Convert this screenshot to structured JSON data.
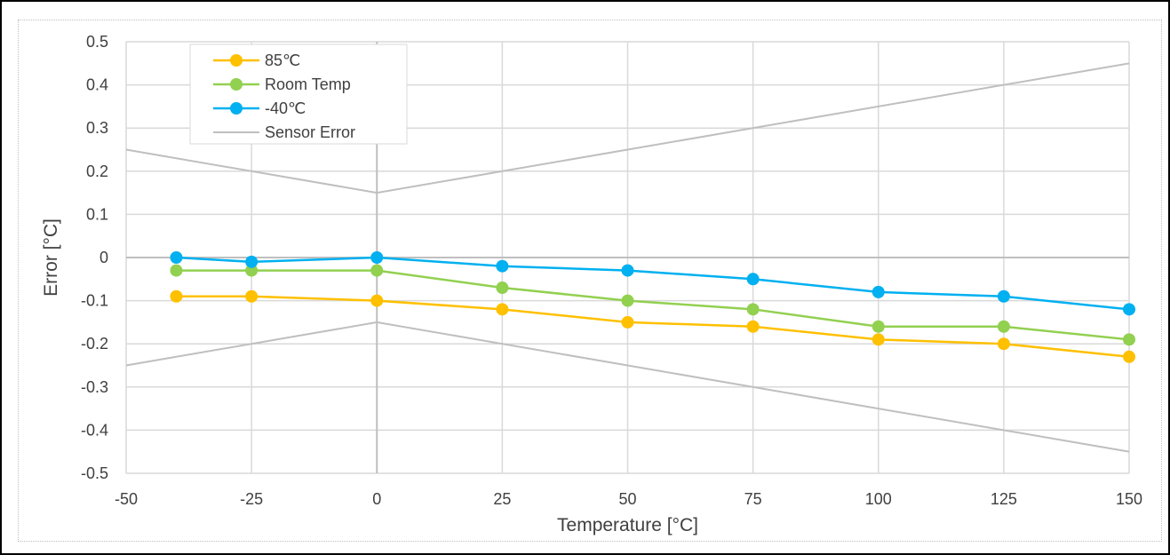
{
  "chart_data": {
    "type": "line",
    "xlabel": "Temperature [°C]",
    "ylabel": "Error [°C]",
    "xlim": [
      -50,
      150
    ],
    "ylim": [
      -0.5,
      0.5
    ],
    "x_ticks": [
      -50,
      -25,
      0,
      25,
      50,
      75,
      100,
      125,
      150
    ],
    "x_tick_labels": [
      "-50",
      "-25",
      "0",
      "25",
      "50",
      "75",
      "100",
      "125",
      "150"
    ],
    "y_ticks": [
      0.5,
      0.4,
      0.3,
      0.2,
      0.1,
      0,
      -0.1,
      -0.2,
      -0.3,
      -0.4,
      -0.5
    ],
    "y_tick_labels": [
      "0.5",
      "0.4",
      "0.3",
      "0.2",
      "0.1",
      "0",
      "-0.1",
      "-0.2",
      "-0.3",
      "-0.4",
      "-0.5"
    ],
    "grid": true,
    "legend_position": "top-left",
    "series": [
      {
        "name": "85℃",
        "color": "#ffc000",
        "markers": true,
        "x": [
          -40,
          -25,
          0,
          25,
          50,
          75,
          100,
          125,
          150
        ],
        "y": [
          -0.09,
          -0.09,
          -0.1,
          -0.12,
          -0.15,
          -0.16,
          -0.19,
          -0.2,
          -0.23
        ]
      },
      {
        "name": "Room Temp",
        "color": "#92d050",
        "markers": true,
        "x": [
          -40,
          -25,
          0,
          25,
          50,
          75,
          100,
          125,
          150
        ],
        "y": [
          -0.03,
          -0.03,
          -0.03,
          -0.07,
          -0.1,
          -0.12,
          -0.16,
          -0.16,
          -0.19
        ]
      },
      {
        "name": "-40℃",
        "color": "#00b0f0",
        "markers": true,
        "x": [
          -40,
          -25,
          0,
          25,
          50,
          75,
          100,
          125,
          150
        ],
        "y": [
          0.0,
          -0.01,
          0.0,
          -0.02,
          -0.03,
          -0.05,
          -0.08,
          -0.09,
          -0.12
        ]
      },
      {
        "name": "Sensor Error",
        "color": "#bfbfbf",
        "markers": false,
        "x": [
          -50,
          0,
          150
        ],
        "y": [
          0.25,
          0.15,
          0.45
        ]
      },
      {
        "name": "",
        "color": "#bfbfbf",
        "markers": false,
        "x": [
          -50,
          0,
          150
        ],
        "y": [
          -0.25,
          -0.15,
          -0.45
        ]
      }
    ]
  }
}
